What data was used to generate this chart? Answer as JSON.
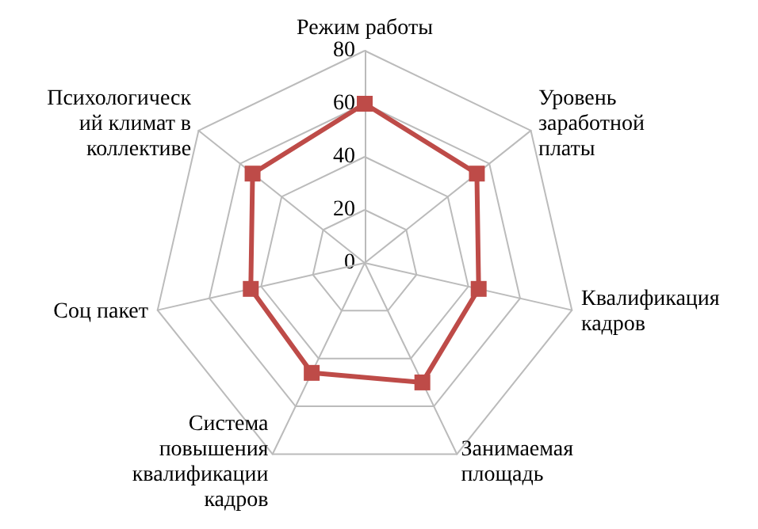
{
  "chart_data": {
    "type": "radar",
    "categories": [
      "Режим работы",
      "Уровень заработной платы",
      "Квалификация кадров",
      "Занимаемая площадь",
      "Система повышения квалификации кадров",
      "Соц пакет",
      "Психологический климат в коллективе"
    ],
    "series": [
      {
        "color": "#be4b48",
        "values": [
          60,
          54,
          44,
          50,
          46,
          44,
          54
        ]
      }
    ],
    "ylim": [
      0,
      80
    ],
    "yticks": [
      0,
      20,
      40,
      60,
      80
    ],
    "grid": true,
    "marker": "square"
  }
}
